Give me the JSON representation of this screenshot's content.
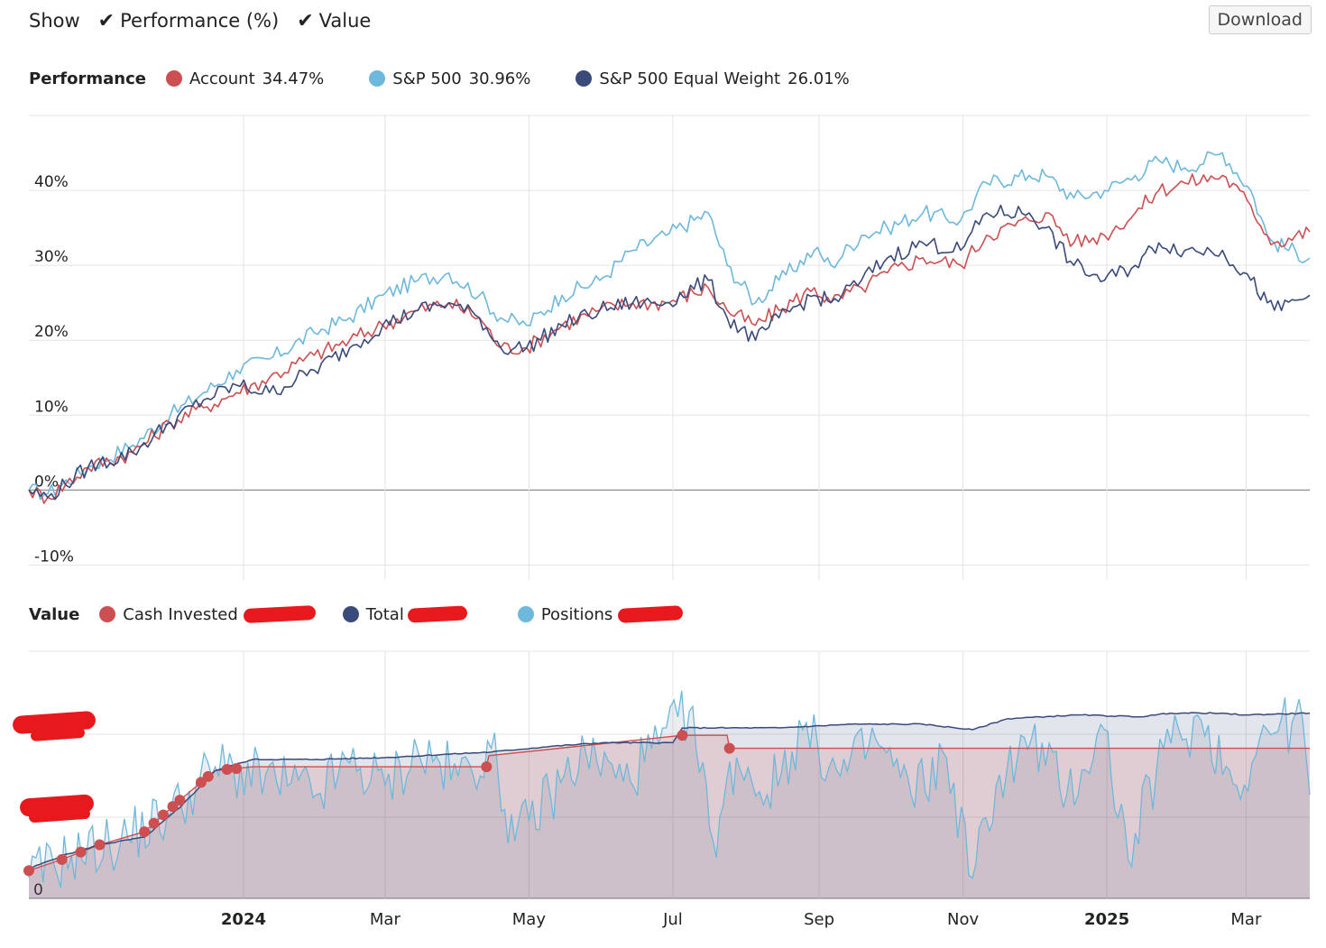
{
  "toolbar": {
    "show_label": "Show",
    "toggles": [
      {
        "label": "Performance (%)",
        "checked": true
      },
      {
        "label": "Value",
        "checked": true
      }
    ],
    "download_label": "Download"
  },
  "performance_legend": {
    "title": "Performance",
    "items": [
      {
        "name": "Account",
        "value": "34.47%",
        "color": "#cc4f52"
      },
      {
        "name": "S&P 500",
        "value": "30.96%",
        "color": "#6db8dc"
      },
      {
        "name": "S&P 500 Equal Weight",
        "value": "26.01%",
        "color": "#3a4a7a"
      }
    ]
  },
  "value_legend": {
    "title": "Value",
    "items": [
      {
        "name": "Cash Invested",
        "color": "#cc4f52"
      },
      {
        "name": "Total",
        "color": "#3a4a7a"
      },
      {
        "name": "Positions",
        "color": "#6db8dc"
      }
    ]
  },
  "chart_data": [
    {
      "type": "line",
      "ylim": [
        -12,
        50
      ],
      "yticks": [
        -10,
        0,
        10,
        20,
        30,
        40
      ],
      "ytick_labels": [
        "-10%",
        "0%",
        "10%",
        "20%",
        "30%",
        "40%"
      ],
      "x_range": [
        "2023-10-02",
        "2025-03-28"
      ],
      "x_ticks": [
        {
          "date": "2024-01-01",
          "label": "2024",
          "bold": true
        },
        {
          "date": "2024-03-01",
          "label": "Mar",
          "bold": false
        },
        {
          "date": "2024-05-01",
          "label": "May",
          "bold": false
        },
        {
          "date": "2024-07-01",
          "label": "Jul",
          "bold": false
        },
        {
          "date": "2024-09-01",
          "label": "Sep",
          "bold": false
        },
        {
          "date": "2024-11-01",
          "label": "Nov",
          "bold": false
        },
        {
          "date": "2025-01-01",
          "label": "2025",
          "bold": true
        },
        {
          "date": "2025-03-01",
          "label": "Mar",
          "bold": false
        }
      ],
      "grid": true,
      "series": [
        {
          "name": "S&P 500",
          "color": "#6db8dc",
          "x": [
            "2023-10-02",
            "2023-10-10",
            "2023-10-27",
            "2023-11-15",
            "2023-12-01",
            "2023-12-15",
            "2023-12-29",
            "2024-01-12",
            "2024-01-31",
            "2024-02-15",
            "2024-02-29",
            "2024-03-15",
            "2024-03-28",
            "2024-04-10",
            "2024-04-19",
            "2024-04-30",
            "2024-05-15",
            "2024-05-31",
            "2024-06-14",
            "2024-06-28",
            "2024-07-16",
            "2024-07-24",
            "2024-08-05",
            "2024-08-15",
            "2024-08-30",
            "2024-09-06",
            "2024-09-19",
            "2024-09-30",
            "2024-10-15",
            "2024-10-31",
            "2024-11-11",
            "2024-11-29",
            "2024-12-06",
            "2024-12-18",
            "2024-12-31",
            "2025-01-13",
            "2025-01-23",
            "2025-02-03",
            "2025-02-19",
            "2025-03-03",
            "2025-03-10",
            "2025-03-13",
            "2025-03-28"
          ],
          "y": [
            0,
            -0.5,
            3,
            6,
            10,
            13,
            16,
            17.5,
            21,
            23,
            26,
            28,
            29,
            26,
            23,
            22,
            26,
            28,
            32,
            34,
            37,
            30,
            25,
            28,
            32,
            30,
            34,
            35,
            37,
            36,
            41,
            42,
            42,
            39,
            40,
            42,
            44,
            43,
            45,
            40,
            34,
            33,
            30.96
          ]
        },
        {
          "name": "Account",
          "color": "#cc4f52",
          "x": [
            "2023-10-02",
            "2023-10-10",
            "2023-10-27",
            "2023-11-15",
            "2023-12-01",
            "2023-12-15",
            "2023-12-29",
            "2024-01-12",
            "2024-01-31",
            "2024-02-15",
            "2024-02-29",
            "2024-03-15",
            "2024-03-28",
            "2024-04-10",
            "2024-04-19",
            "2024-04-30",
            "2024-05-15",
            "2024-05-31",
            "2024-06-14",
            "2024-06-28",
            "2024-07-16",
            "2024-07-24",
            "2024-08-05",
            "2024-08-15",
            "2024-08-30",
            "2024-09-06",
            "2024-09-19",
            "2024-09-30",
            "2024-10-15",
            "2024-10-31",
            "2024-11-11",
            "2024-11-29",
            "2024-12-06",
            "2024-12-18",
            "2024-12-31",
            "2025-01-13",
            "2025-01-23",
            "2025-02-03",
            "2025-02-19",
            "2025-03-03",
            "2025-03-10",
            "2025-03-13",
            "2025-03-28"
          ],
          "y": [
            0,
            -1,
            3,
            5,
            9,
            11,
            13,
            15,
            18,
            20,
            22,
            24,
            25,
            23,
            19,
            19,
            22,
            24,
            25,
            25,
            27,
            24,
            22,
            24,
            27,
            25,
            27,
            29,
            31,
            30,
            34,
            36,
            37,
            33,
            34,
            37,
            40,
            41,
            42,
            38,
            34,
            33,
            34.47
          ]
        },
        {
          "name": "S&P 500 Equal Weight",
          "color": "#3a4a7a",
          "x": [
            "2023-10-02",
            "2023-10-10",
            "2023-10-27",
            "2023-11-15",
            "2023-12-01",
            "2023-12-15",
            "2023-12-29",
            "2024-01-12",
            "2024-01-31",
            "2024-02-15",
            "2024-02-29",
            "2024-03-15",
            "2024-03-28",
            "2024-04-10",
            "2024-04-19",
            "2024-04-30",
            "2024-05-15",
            "2024-05-31",
            "2024-06-14",
            "2024-06-28",
            "2024-07-16",
            "2024-07-24",
            "2024-08-05",
            "2024-08-15",
            "2024-08-30",
            "2024-09-06",
            "2024-09-19",
            "2024-09-30",
            "2024-10-15",
            "2024-10-31",
            "2024-11-11",
            "2024-11-29",
            "2024-12-06",
            "2024-12-18",
            "2024-12-31",
            "2025-01-13",
            "2025-01-23",
            "2025-02-03",
            "2025-02-19",
            "2025-03-03",
            "2025-03-10",
            "2025-03-13",
            "2025-03-28"
          ],
          "y": [
            0,
            -1,
            3,
            5,
            9,
            12,
            14,
            13,
            16,
            19,
            22,
            24,
            25,
            23,
            19,
            19,
            22,
            24,
            25,
            25,
            28,
            23,
            20,
            23,
            26,
            25,
            28,
            31,
            33,
            32,
            37,
            37,
            35,
            30,
            28,
            30,
            33,
            32,
            32,
            28,
            25,
            24,
            26.01
          ]
        }
      ]
    },
    {
      "type": "area",
      "ytick_labels": [
        "0"
      ],
      "x_range": [
        "2023-10-02",
        "2025-03-28"
      ],
      "x_ticks": [
        {
          "date": "2024-01-01",
          "label": "2024",
          "bold": true
        },
        {
          "date": "2024-03-01",
          "label": "Mar",
          "bold": false
        },
        {
          "date": "2024-05-01",
          "label": "May",
          "bold": false
        },
        {
          "date": "2024-07-01",
          "label": "Jul",
          "bold": false
        },
        {
          "date": "2024-09-01",
          "label": "Sep",
          "bold": false
        },
        {
          "date": "2024-11-01",
          "label": "Nov",
          "bold": false
        },
        {
          "date": "2025-01-01",
          "label": "2025",
          "bold": true
        },
        {
          "date": "2025-03-01",
          "label": "Mar",
          "bold": false
        }
      ],
      "grid": true,
      "normalized": true,
      "series": [
        {
          "name": "Total",
          "color": "#3a4a7a",
          "x": [
            "2023-10-02",
            "2023-10-16",
            "2023-11-01",
            "2023-11-20",
            "2023-12-05",
            "2023-12-20",
            "2024-01-05",
            "2024-02-01",
            "2024-03-01",
            "2024-04-15",
            "2024-05-10",
            "2024-06-01",
            "2024-07-01",
            "2024-07-05",
            "2024-07-25",
            "2024-08-15",
            "2024-09-15",
            "2024-10-15",
            "2024-11-05",
            "2024-11-20",
            "2024-12-20",
            "2025-01-15",
            "2025-01-28",
            "2025-02-15",
            "2025-03-01",
            "2025-03-28"
          ],
          "y": [
            0.15,
            0.22,
            0.28,
            0.32,
            0.48,
            0.68,
            0.74,
            0.74,
            0.75,
            0.78,
            0.81,
            0.83,
            0.83,
            0.91,
            0.91,
            0.91,
            0.93,
            0.93,
            0.9,
            0.96,
            0.98,
            0.97,
            0.99,
            0.99,
            0.98,
            0.99
          ]
        },
        {
          "name": "Cash Invested",
          "color": "#cc4f52",
          "x": [
            "2023-10-02",
            "2023-10-16",
            "2023-11-01",
            "2023-11-20",
            "2023-12-05",
            "2023-12-20",
            "2024-01-05",
            "2024-04-13",
            "2024-04-14",
            "2024-07-05",
            "2024-07-24",
            "2024-07-25",
            "2025-03-28"
          ],
          "y": [
            0.14,
            0.2,
            0.28,
            0.35,
            0.52,
            0.68,
            0.7,
            0.7,
            0.76,
            0.87,
            0.87,
            0.8,
            0.8
          ]
        },
        {
          "name": "Positions",
          "color": "#6db8dc",
          "x": [
            "2023-10-02",
            "2023-10-20",
            "2023-11-10",
            "2023-12-01",
            "2023-12-20",
            "2024-01-15",
            "2024-02-01",
            "2024-02-15",
            "2024-03-01",
            "2024-03-15",
            "2024-04-01",
            "2024-04-15",
            "2024-04-25",
            "2024-05-10",
            "2024-05-25",
            "2024-06-10",
            "2024-06-25",
            "2024-07-08",
            "2024-07-18",
            "2024-07-28",
            "2024-08-10",
            "2024-08-25",
            "2024-09-10",
            "2024-09-25",
            "2024-10-10",
            "2024-10-25",
            "2024-11-05",
            "2024-11-15",
            "2024-11-30",
            "2024-12-15",
            "2024-12-31",
            "2025-01-10",
            "2025-01-25",
            "2025-02-10",
            "2025-02-25",
            "2025-03-10",
            "2025-03-25",
            "2025-03-28"
          ],
          "y": [
            0.1,
            0.22,
            0.3,
            0.45,
            0.7,
            0.62,
            0.55,
            0.72,
            0.6,
            0.78,
            0.65,
            0.8,
            0.3,
            0.55,
            0.78,
            0.62,
            0.82,
            1.0,
            0.3,
            0.75,
            0.55,
            0.9,
            0.65,
            0.85,
            0.55,
            0.75,
            0.1,
            0.6,
            0.85,
            0.55,
            0.9,
            0.2,
            0.8,
            0.95,
            0.6,
            0.9,
            0.95,
            0.55
          ]
        }
      ],
      "cash_markers": [
        "2023-10-02",
        "2023-10-16",
        "2023-10-24",
        "2023-11-01",
        "2023-11-20",
        "2023-11-24",
        "2023-11-28",
        "2023-12-02",
        "2023-12-05",
        "2023-12-14",
        "2023-12-17",
        "2023-12-25",
        "2023-12-29",
        "2024-04-13",
        "2024-07-05",
        "2024-07-25"
      ]
    }
  ]
}
